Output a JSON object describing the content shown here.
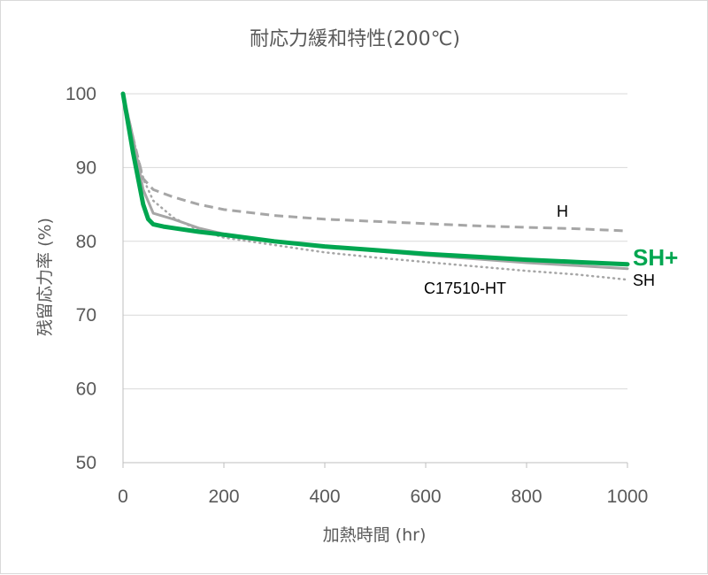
{
  "chart_data": {
    "type": "line",
    "title": "耐応力緩和特性(200℃)",
    "xlabel": "加熱時間 (hr)",
    "ylabel": "残留応力率 (%)",
    "xlim": [
      0,
      1000
    ],
    "ylim": [
      50,
      100
    ],
    "xticks": [
      0,
      200,
      400,
      600,
      800,
      1000
    ],
    "yticks": [
      50,
      60,
      70,
      80,
      90,
      100
    ],
    "grid": "horizontal",
    "legend": "inline labels at line ends",
    "series": [
      {
        "name": "H",
        "style": "dashed",
        "color": "#a6a6a6",
        "x": [
          0,
          20,
          40,
          60,
          100,
          150,
          200,
          300,
          400,
          500,
          600,
          700,
          800,
          900,
          1000
        ],
        "y": [
          100,
          94,
          88.5,
          87,
          86,
          85,
          84.3,
          83.5,
          83,
          82.7,
          82.4,
          82.1,
          81.9,
          81.7,
          81.4
        ]
      },
      {
        "name": "SH",
        "style": "solid",
        "color": "#a6a6a6",
        "x": [
          0,
          20,
          40,
          60,
          100,
          150,
          200,
          300,
          400,
          500,
          600,
          700,
          800,
          900,
          1000
        ],
        "y": [
          100,
          94,
          87,
          83.8,
          83,
          81.8,
          81,
          80,
          79.3,
          78.7,
          78.1,
          77.6,
          77.1,
          76.7,
          76.3
        ]
      },
      {
        "name": "C17510-HT",
        "style": "dotted",
        "color": "#a6a6a6",
        "x": [
          0,
          20,
          40,
          60,
          100,
          150,
          200,
          300,
          400,
          500,
          600,
          700,
          800,
          900,
          1000
        ],
        "y": [
          100,
          94,
          88.5,
          85.5,
          83.2,
          81.5,
          80.5,
          79.5,
          78.5,
          77.8,
          77.2,
          76.6,
          76,
          75.5,
          74.8
        ]
      },
      {
        "name": "SH+",
        "style": "solid-bold",
        "color": "#00a650",
        "x": [
          0,
          20,
          40,
          50,
          60,
          80,
          100,
          150,
          200,
          300,
          400,
          500,
          600,
          700,
          800,
          900,
          1000
        ],
        "y": [
          100,
          92,
          85,
          83,
          82.3,
          82,
          81.8,
          81.3,
          80.9,
          80,
          79.3,
          78.8,
          78.3,
          77.9,
          77.5,
          77.2,
          76.9
        ]
      }
    ]
  }
}
